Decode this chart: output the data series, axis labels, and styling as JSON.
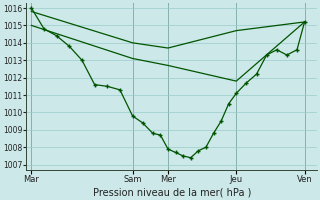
{
  "background_color": "#cce8e8",
  "grid_color": "#99cccc",
  "line_color": "#005500",
  "marker_color": "#005500",
  "xlabel_text": "Pression niveau de la mer( hPa )",
  "ylim": [
    1006.7,
    1016.3
  ],
  "yticks": [
    1007,
    1008,
    1009,
    1010,
    1011,
    1012,
    1013,
    1014,
    1015,
    1016
  ],
  "day_labels": [
    "Mar",
    "Sam",
    "Mer",
    "Jeu",
    "Ven"
  ],
  "day_positions": [
    0,
    40,
    54,
    81,
    108
  ],
  "xlim": [
    -2,
    113
  ],
  "vline_positions": [
    0,
    40,
    54,
    81,
    108
  ],
  "series1_x": [
    0,
    40,
    54,
    81,
    108
  ],
  "series1_y": [
    1015.8,
    1014.0,
    1013.7,
    1014.7,
    1015.2
  ],
  "series2_x": [
    0,
    40,
    54,
    81,
    108
  ],
  "series2_y": [
    1015.0,
    1013.1,
    1012.7,
    1011.8,
    1015.2
  ],
  "series3_x": [
    0,
    5,
    10,
    15,
    20,
    25,
    30,
    35,
    40,
    44,
    48,
    51,
    54,
    57,
    60,
    63,
    66,
    69,
    72,
    75,
    78,
    81,
    85,
    89,
    93,
    97,
    101,
    105,
    108
  ],
  "series3_y": [
    1016.0,
    1014.8,
    1014.4,
    1013.8,
    1013.0,
    1011.6,
    1011.5,
    1011.3,
    1009.8,
    1009.4,
    1008.8,
    1008.7,
    1007.9,
    1007.7,
    1007.5,
    1007.4,
    1007.8,
    1008.0,
    1008.8,
    1009.5,
    1010.5,
    1011.1,
    1011.7,
    1012.2,
    1013.3,
    1013.6,
    1013.3,
    1013.6,
    1015.2
  ],
  "ytick_fontsize": 5.5,
  "xtick_fontsize": 6,
  "xlabel_fontsize": 7
}
